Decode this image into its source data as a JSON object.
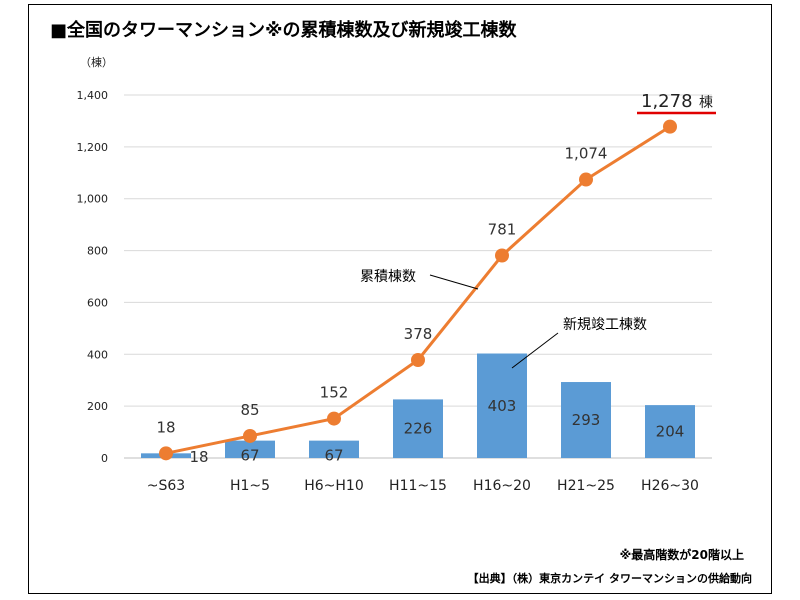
{
  "title": "■全国のタワーマンション※の累積棟数及び新規竣工棟数",
  "footnote": "※最高階数が20階以上",
  "source": "【出典】（株）東京カンテイ タワーマンションの供給動向",
  "chart_data": {
    "type": "bar",
    "categories": [
      "~S63",
      "H1~5",
      "H6~H10",
      "H11~15",
      "H16~20",
      "H21~25",
      "H26~30"
    ],
    "ylim": [
      0,
      1400
    ],
    "yticks": [
      0,
      200,
      400,
      600,
      800,
      1000,
      1200,
      1400
    ],
    "ytick_labels": [
      "0",
      "200",
      "400",
      "600",
      "800",
      "1,000",
      "1,200",
      "1,400"
    ],
    "ylabel": "（棟）",
    "series": [
      {
        "name": "新規竣工棟数",
        "type": "bar",
        "color": "#5b9bd5",
        "values": [
          18,
          67,
          67,
          226,
          403,
          293,
          204
        ],
        "labels": [
          "18",
          "67",
          "67",
          "226",
          "403",
          "293",
          "204"
        ]
      },
      {
        "name": "累積棟数",
        "type": "line",
        "color": "#ed7d31",
        "values": [
          18,
          85,
          152,
          378,
          781,
          1074,
          1278
        ],
        "labels": [
          "18",
          "85",
          "152",
          "378",
          "781",
          "1,074",
          "1,278"
        ]
      }
    ],
    "highlight": {
      "value": "1,278",
      "unit": "棟",
      "underline_color": "#e00000"
    },
    "annotations": {
      "cumulative": "累積棟数",
      "new": "新規竣工棟数"
    }
  }
}
